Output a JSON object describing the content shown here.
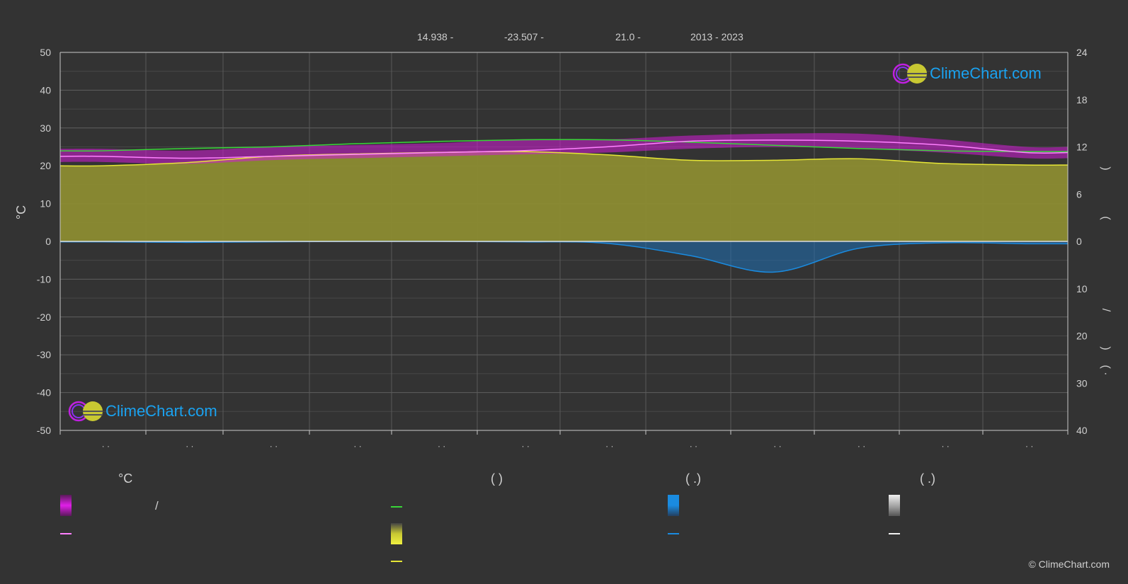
{
  "header": {
    "latitude": "14.938 -",
    "longitude": "-23.507 -",
    "elevation": "21.0 -",
    "years": "2013 - 2023"
  },
  "colors": {
    "background": "#333333",
    "grid": "#5a5a5a",
    "temp_band": "#d21bd6",
    "temp_mean_line": "#ff80ff",
    "daylight_line": "#39d639",
    "sunshine_fill": "#8c8c32",
    "sunshine_line": "#e6e636",
    "rain_fill": "#1e6fb4",
    "rain_line": "#1a8be0",
    "brand": "#1aa2f0"
  },
  "brand": {
    "name": "ClimeChart.com",
    "copyright": "© ClimeChart.com"
  },
  "legend": {
    "temperature_heading": "°C",
    "sun_heading": "(            )",
    "rain_heading": "(    .)",
    "snow_heading": "(    .)",
    "temp_range_sep": "/"
  },
  "chart_data": {
    "type": "area",
    "left_axis": {
      "label": "°C",
      "range": [
        -50,
        50
      ],
      "ticks": [
        50,
        40,
        30,
        20,
        10,
        0,
        -10,
        -20,
        -30,
        -40,
        -50
      ]
    },
    "right_axis_top": {
      "range": [
        0,
        24
      ],
      "ticks": [
        24,
        18,
        12,
        6,
        0
      ]
    },
    "right_axis_bottom": {
      "range": [
        0,
        40
      ],
      "ticks": [
        0,
        10,
        20,
        30,
        40
      ]
    },
    "right_axis_labels": [
      ")",
      "(",
      "/",
      ")",
      "( ·"
    ],
    "month_labels": [
      "· ·",
      "· ·",
      "· ·",
      "· ·",
      "· ·",
      "· ·",
      "· ·",
      "· ·",
      "· ·",
      "· ·",
      "· ·",
      "· ·"
    ],
    "series": [
      {
        "key": "temp_max",
        "values": [
          24.5,
          24.0,
          25.0,
          25.5,
          26.0,
          27.0,
          27.0,
          28.0,
          28.5,
          28.5,
          27.0,
          25.0
        ]
      },
      {
        "key": "temp_min",
        "values": [
          21.0,
          20.5,
          21.5,
          22.0,
          22.5,
          23.0,
          23.5,
          24.5,
          25.0,
          24.5,
          23.5,
          22.0
        ]
      },
      {
        "key": "temp_mean",
        "values": [
          22.5,
          22.0,
          22.5,
          23.0,
          23.5,
          24.0,
          25.0,
          26.5,
          26.8,
          26.5,
          25.5,
          23.5
        ]
      },
      {
        "key": "daylight_hours",
        "values": [
          11.5,
          11.8,
          12.0,
          12.4,
          12.7,
          12.9,
          12.9,
          12.6,
          12.2,
          11.8,
          11.5,
          11.4
        ]
      },
      {
        "key": "sunshine_hours",
        "values": [
          9.6,
          10.0,
          10.8,
          11.1,
          11.3,
          11.4,
          11.0,
          10.3,
          10.3,
          10.5,
          9.9,
          9.7
        ]
      },
      {
        "key": "precipitation_mm",
        "values": [
          0.1,
          0.2,
          0.1,
          0.0,
          0.0,
          0.1,
          0.4,
          3.0,
          6.5,
          1.5,
          0.3,
          0.5
        ]
      }
    ]
  }
}
